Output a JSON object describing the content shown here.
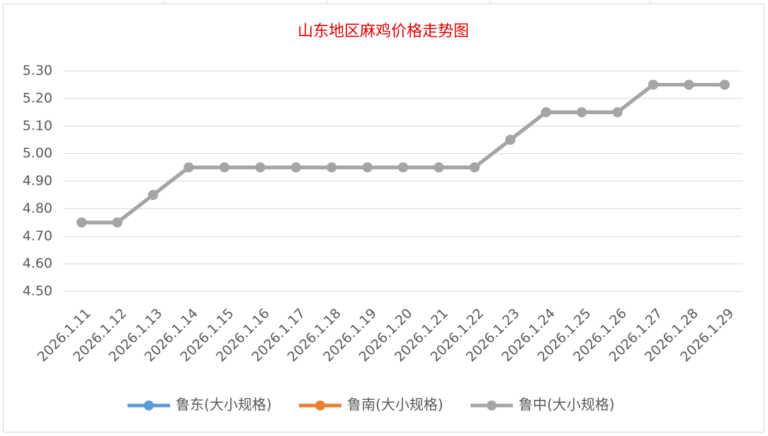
{
  "chart_data": {
    "type": "line",
    "title": "山东地区麻鸡价格走势图",
    "categories": [
      "2026.1.11",
      "2026.1.12",
      "2026.1.13",
      "2026.1.14",
      "2026.1.15",
      "2026.1.16",
      "2026.1.17",
      "2026.1.18",
      "2026.1.19",
      "2026.1.20",
      "2026.1.21",
      "2026.1.22",
      "2026.1.23",
      "2026.1.24",
      "2026.1.25",
      "2026.1.26",
      "2026.1.27",
      "2026.1.28",
      "2026.1.29"
    ],
    "series": [
      {
        "name": "鲁东(大小规格)",
        "color": "#5b9bd5",
        "values": [
          4.75,
          4.75,
          4.85,
          4.95,
          4.95,
          4.95,
          4.95,
          4.95,
          4.95,
          4.95,
          4.95,
          4.95,
          5.05,
          5.15,
          5.15,
          5.15,
          5.25,
          5.25,
          5.25
        ]
      },
      {
        "name": "鲁南(大小规格)",
        "color": "#ed7d31",
        "values": [
          4.75,
          4.75,
          4.85,
          4.95,
          4.95,
          4.95,
          4.95,
          4.95,
          4.95,
          4.95,
          4.95,
          4.95,
          5.05,
          5.15,
          5.15,
          5.15,
          5.25,
          5.25,
          5.25
        ]
      },
      {
        "name": "鲁中(大小规格)",
        "color": "#a5a5a5",
        "values": [
          4.75,
          4.75,
          4.85,
          4.95,
          4.95,
          4.95,
          4.95,
          4.95,
          4.95,
          4.95,
          4.95,
          4.95,
          5.05,
          5.15,
          5.15,
          5.15,
          5.25,
          5.25,
          5.25
        ]
      }
    ],
    "ylim": [
      4.5,
      5.3
    ],
    "yticks": [
      {
        "value": 4.5,
        "label": "4.50"
      },
      {
        "value": 4.6,
        "label": "4.60"
      },
      {
        "value": 4.7,
        "label": "4.70"
      },
      {
        "value": 4.8,
        "label": "4.80"
      },
      {
        "value": 4.9,
        "label": "4.90"
      },
      {
        "value": 5.0,
        "label": "5.00"
      },
      {
        "value": 5.1,
        "label": "5.10"
      },
      {
        "value": 5.2,
        "label": "5.20"
      },
      {
        "value": 5.3,
        "label": "5.30"
      }
    ],
    "grid": true,
    "legend": "bottom"
  }
}
